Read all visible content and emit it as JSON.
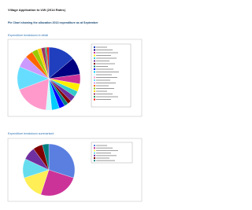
{
  "header": {
    "title": "Village Application to UW (2014 Rates)",
    "subtitle": "Pie Chart showing the allocation 2013 expenditure as at September"
  },
  "chart_data": [
    {
      "type": "pie",
      "title": "Expenditure breakdown in detail",
      "values": [
        14,
        9,
        5,
        4,
        3,
        3,
        2,
        2,
        3,
        4,
        3,
        18,
        12,
        6,
        4,
        3,
        2,
        2,
        1,
        1
      ],
      "colors": [
        "#1f3fbf",
        "#000080",
        "#cc3399",
        "#ffee00",
        "#33cccc",
        "#7030a0",
        "#800000",
        "#008080",
        "#0000ff",
        "#00ccff",
        "#ccffff",
        "#ff99cc",
        "#66ddff",
        "#cc99ff",
        "#ff6600",
        "#99cc00",
        "#ffcc00",
        "#993366",
        "#339966",
        "#ff0000"
      ]
    },
    {
      "type": "pie",
      "title": "Expenditure breakdown summarised",
      "values": [
        30,
        25,
        15,
        12,
        8,
        6,
        4
      ],
      "colors": [
        "#5a7fe0",
        "#cc3399",
        "#ffee55",
        "#66ddee",
        "#7030a0",
        "#800000",
        "#008080"
      ]
    }
  ]
}
